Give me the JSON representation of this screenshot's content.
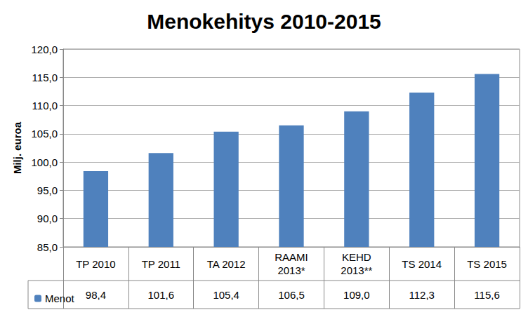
{
  "chart_data": {
    "type": "bar",
    "title": "Menokehitys 2010-2015",
    "y_label": "Milj. euroa",
    "categories": [
      "TP 2010",
      "TP 2011",
      "TA 2012",
      "RAAMI\n2013*",
      "KEHD\n2013**",
      "TS 2014",
      "TS 2015"
    ],
    "series": [
      {
        "name": "Menot",
        "color": "#4f81bd",
        "values": [
          98.4,
          101.6,
          105.4,
          106.5,
          109.0,
          112.3,
          115.6
        ],
        "value_labels": [
          "98,4",
          "101,6",
          "105,4",
          "106,5",
          "109,0",
          "112,3",
          "115,6"
        ]
      }
    ],
    "ylim": [
      85,
      120
    ],
    "yticks": [
      {
        "value": 85,
        "label": "85,0"
      },
      {
        "value": 90,
        "label": "90,0"
      },
      {
        "value": 95,
        "label": "95,0"
      },
      {
        "value": 100,
        "label": "100,0"
      },
      {
        "value": 105,
        "label": "105,0"
      },
      {
        "value": 110,
        "label": "110,0"
      },
      {
        "value": 115,
        "label": "115,0"
      },
      {
        "value": 120,
        "label": "120,0"
      }
    ],
    "grid": true,
    "data_labels": true,
    "legend": "bottom"
  }
}
